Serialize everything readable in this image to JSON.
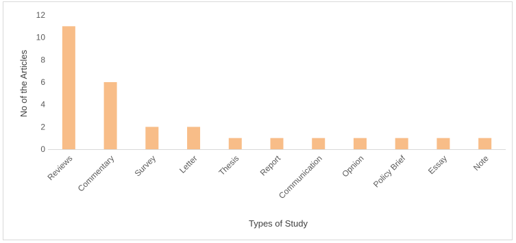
{
  "chart_data": {
    "type": "bar",
    "title": "",
    "xlabel": "Types of Study",
    "ylabel": "No of the Articles",
    "categories": [
      "Reviews",
      "Commentary",
      "Survey",
      "Letter",
      "Thesis",
      "Report",
      "Communication",
      "Opnion",
      "Policy Brief",
      "Essay",
      "Note"
    ],
    "values": [
      11,
      6,
      2,
      2,
      1,
      1,
      1,
      1,
      1,
      1,
      1
    ],
    "ylim": [
      0,
      12
    ],
    "yticks": [
      "0",
      "2",
      "4",
      "6",
      "8",
      "10",
      "12"
    ],
    "grid": false,
    "legend": "none",
    "bar_color": "#F8BD88"
  }
}
